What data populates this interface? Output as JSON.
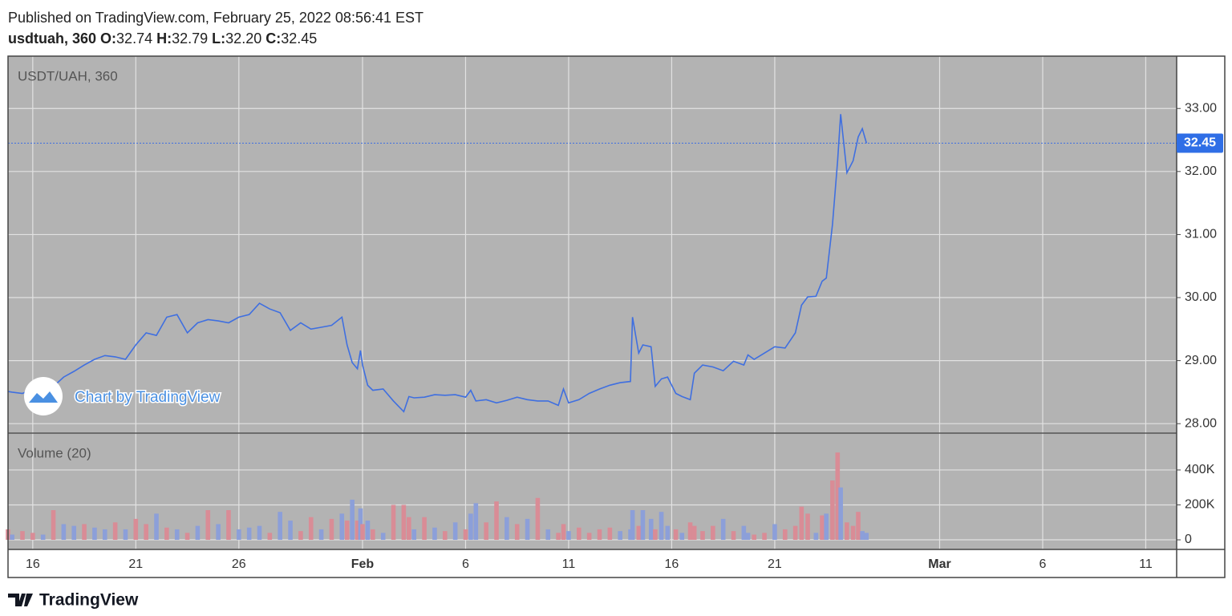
{
  "header": {
    "published": "Published on TradingView.com, February 25, 2022 08:56:41 EST",
    "symbol": "usdtuah, 360",
    "ohlc": [
      {
        "key": "O:",
        "value": "32.74"
      },
      {
        "key": "H:",
        "value": "32.79"
      },
      {
        "key": "L:",
        "value": "32.20"
      },
      {
        "key": "C:",
        "value": "32.45"
      }
    ]
  },
  "watermark": "Chart by TradingView",
  "footer": "TradingView",
  "chart_data": [
    {
      "type": "line",
      "title": "USDT/UAH, 360",
      "color": "#3f6fe0",
      "grid": true,
      "x": [
        14.8,
        15,
        15.5,
        16,
        16.5,
        17,
        17.5,
        18,
        18.5,
        19,
        19.5,
        20,
        20.5,
        21,
        21.5,
        22,
        22.5,
        23,
        23.5,
        24,
        24.5,
        25,
        25.5,
        26,
        26.5,
        27,
        27.5,
        28,
        28.5,
        29,
        29.5,
        30,
        30.5,
        31,
        31.25,
        31.5,
        31.75,
        31.9,
        32,
        32.25,
        32.5,
        33,
        33.5,
        34,
        34.25,
        34.5,
        35,
        35.5,
        36,
        36.5,
        37,
        37.25,
        37.5,
        38,
        38.5,
        39,
        39.5,
        40,
        40.5,
        41,
        41.5,
        41.75,
        42,
        42.5,
        43,
        43.5,
        44,
        44.5,
        45,
        45.1,
        45.4,
        45.6,
        46,
        46.2,
        46.5,
        46.8,
        47.2,
        47.5,
        47.9,
        48.1,
        48.5,
        49,
        49.5,
        50,
        50.5,
        50.7,
        51,
        51.5,
        52,
        52.5,
        53,
        53.3,
        53.6,
        54,
        54.3,
        54.5,
        54.8,
        55.05,
        55.2,
        55.5,
        55.8,
        56.05,
        56.25,
        56.45
      ],
      "values": [
        28.51,
        28.5,
        28.48,
        28.55,
        28.51,
        28.59,
        28.74,
        28.83,
        28.93,
        29.02,
        29.08,
        29.06,
        29.02,
        29.25,
        29.44,
        29.4,
        29.69,
        29.73,
        29.44,
        29.6,
        29.65,
        29.63,
        29.6,
        29.69,
        29.73,
        29.91,
        29.82,
        29.76,
        29.48,
        29.6,
        29.5,
        29.53,
        29.56,
        29.69,
        29.25,
        28.97,
        28.87,
        29.16,
        28.93,
        28.61,
        28.53,
        28.55,
        28.36,
        28.19,
        28.43,
        28.41,
        28.42,
        28.46,
        28.45,
        28.46,
        28.42,
        28.53,
        28.36,
        28.38,
        28.33,
        28.37,
        28.42,
        28.38,
        28.36,
        28.36,
        28.29,
        28.55,
        28.33,
        28.38,
        28.48,
        28.55,
        28.61,
        28.65,
        28.67,
        29.69,
        29.12,
        29.25,
        29.22,
        28.59,
        28.71,
        28.74,
        28.48,
        28.43,
        28.38,
        28.8,
        28.93,
        28.9,
        28.84,
        28.99,
        28.93,
        29.09,
        29.02,
        29.12,
        29.22,
        29.2,
        29.44,
        29.88,
        30.01,
        30.02,
        30.26,
        30.31,
        31.16,
        32.17,
        32.91,
        31.98,
        32.17,
        32.55,
        32.68,
        32.45
      ],
      "value_labels": {
        "103": "32.45"
      },
      "xlim": [
        14.8,
        71.5
      ],
      "xticks": [
        16,
        21,
        26,
        {
          "value": 32,
          "label": "Feb"
        },
        {
          "value": 37,
          "label": "6"
        },
        {
          "value": 42,
          "label": "11"
        },
        {
          "value": 47,
          "label": "16"
        },
        {
          "value": 52,
          "label": "21"
        },
        {
          "value": 60,
          "label": "Mar"
        },
        {
          "value": 65,
          "label": "6"
        },
        {
          "value": 70,
          "label": "11"
        }
      ],
      "ylim": [
        27.85,
        33.83
      ],
      "yticks": [
        {
          "value": 28,
          "label": "28.00"
        },
        {
          "value": 29,
          "label": "29.00"
        },
        {
          "value": 30,
          "label": "30.00"
        },
        {
          "value": 31,
          "label": "31.00"
        },
        {
          "value": 32,
          "label": "32.00"
        },
        {
          "value": 33,
          "label": "33.00"
        }
      ]
    },
    {
      "type": "bar",
      "title": "Volume (20)",
      "grid": true,
      "values": [
        60000,
        30000,
        50000,
        40000,
        30000,
        170000,
        90000,
        80000,
        90000,
        70000,
        60000,
        100000,
        60000,
        120000,
        90000,
        150000,
        70000,
        60000,
        40000,
        80000,
        170000,
        90000,
        170000,
        60000,
        70000,
        80000,
        40000,
        160000,
        110000,
        50000,
        130000,
        60000,
        120000,
        150000,
        110000,
        230000,
        110000,
        180000,
        90000,
        110000,
        60000,
        40000,
        200000,
        200000,
        130000,
        60000,
        130000,
        70000,
        50000,
        100000,
        60000,
        150000,
        210000,
        100000,
        220000,
        130000,
        90000,
        120000,
        240000,
        60000,
        40000,
        90000,
        50000,
        70000,
        40000,
        60000,
        70000,
        50000,
        60000,
        170000,
        80000,
        170000,
        120000,
        60000,
        160000,
        80000,
        60000,
        40000,
        100000,
        80000,
        50000,
        80000,
        120000,
        50000,
        80000,
        40000,
        30000,
        40000,
        90000,
        60000,
        80000,
        190000,
        150000,
        40000,
        140000,
        150000,
        340000,
        500000,
        300000,
        100000,
        80000,
        160000,
        50000,
        40000
      ],
      "colors": [
        "#d98c96",
        "#8c9fd9",
        "#d98c96",
        "#d98c96",
        "#8c9fd9",
        "#d98c96",
        "#8c9fd9",
        "#8c9fd9",
        "#d98c96",
        "#8c9fd9",
        "#8c9fd9",
        "#d98c96",
        "#8c9fd9",
        "#d98c96",
        "#d98c96",
        "#8c9fd9",
        "#d98c96",
        "#8c9fd9",
        "#d98c96",
        "#8c9fd9",
        "#d98c96",
        "#8c9fd9",
        "#d98c96",
        "#8c9fd9",
        "#8c9fd9",
        "#8c9fd9",
        "#d98c96",
        "#8c9fd9",
        "#8c9fd9",
        "#d98c96",
        "#d98c96",
        "#8c9fd9",
        "#d98c96",
        "#8c9fd9",
        "#d98c96",
        "#8c9fd9",
        "#d98c96",
        "#8c9fd9",
        "#d98c96",
        "#8c9fd9",
        "#d98c96",
        "#8c9fd9",
        "#d98c96",
        "#d98c96",
        "#d98c96",
        "#8c9fd9",
        "#d98c96",
        "#8c9fd9",
        "#d98c96",
        "#8c9fd9",
        "#d98c96",
        "#8c9fd9",
        "#8c9fd9",
        "#d98c96",
        "#d98c96",
        "#8c9fd9",
        "#d98c96",
        "#8c9fd9",
        "#d98c96",
        "#8c9fd9",
        "#d98c96",
        "#d98c96",
        "#8c9fd9",
        "#d98c96",
        "#d98c96",
        "#d98c96",
        "#d98c96",
        "#8c9fd9",
        "#8c9fd9",
        "#8c9fd9",
        "#d98c96",
        "#8c9fd9",
        "#8c9fd9",
        "#d98c96",
        "#8c9fd9",
        "#8c9fd9",
        "#d98c96",
        "#8c9fd9",
        "#d98c96",
        "#d98c96",
        "#d98c96",
        "#d98c96",
        "#8c9fd9",
        "#d98c96",
        "#8c9fd9",
        "#8c9fd9",
        "#d98c96",
        "#d98c96",
        "#8c9fd9",
        "#d98c96",
        "#d98c96",
        "#d98c96",
        "#d98c96",
        "#8c9fd9",
        "#d98c96",
        "#8c9fd9",
        "#d98c96",
        "#d98c96",
        "#8c9fd9",
        "#d98c96",
        "#d98c96",
        "#d98c96",
        "#8c9fd9",
        "#8c9fd9"
      ],
      "ylim": [
        -55000,
        611000
      ],
      "yticks": [
        0,
        {
          "value": 200000,
          "label": "200K"
        },
        {
          "value": 400000,
          "label": "400K"
        }
      ]
    }
  ]
}
